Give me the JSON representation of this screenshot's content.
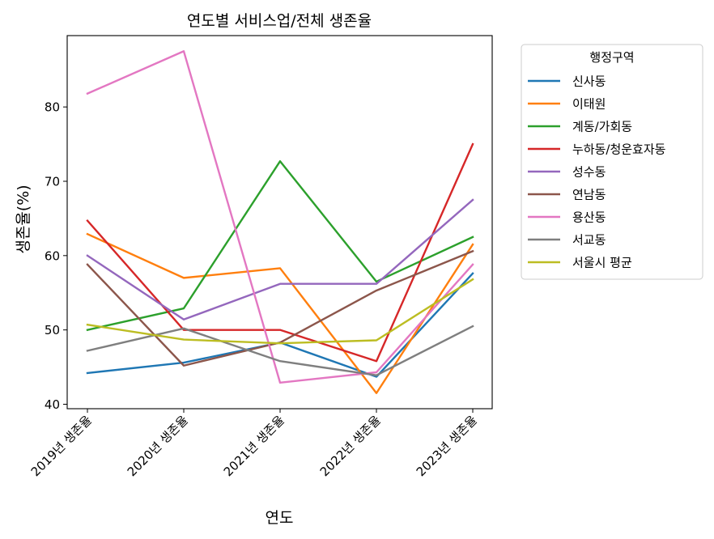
{
  "chart_data": {
    "type": "line",
    "title": "연도별 서비스업/전체 생존율",
    "xlabel": "연도",
    "ylabel": "생존율(%)",
    "categories": [
      "2019년 생존율",
      "2020년 생존율",
      "2021년 생존율",
      "2022년 생존율",
      "2023년 생존율"
    ],
    "ylim": [
      39.4,
      89.6
    ],
    "yticks": [
      40,
      50,
      60,
      70,
      80
    ],
    "grid": false,
    "legend": {
      "title": "행정구역",
      "placement": "outside-right"
    },
    "series": [
      {
        "name": "신사동",
        "color": "#1f77b4",
        "values": [
          44.2,
          45.6,
          48.3,
          43.7,
          57.6
        ]
      },
      {
        "name": "이태원",
        "color": "#ff7f0e",
        "values": [
          62.9,
          57.0,
          58.3,
          41.5,
          61.5
        ]
      },
      {
        "name": "계동/가회동",
        "color": "#2ca02c",
        "values": [
          50.0,
          52.9,
          72.7,
          56.5,
          62.5
        ]
      },
      {
        "name": "누하동/청운효자동",
        "color": "#d62728",
        "values": [
          64.7,
          50.0,
          50.0,
          45.8,
          75.0
        ]
      },
      {
        "name": "성수동",
        "color": "#9467bd",
        "values": [
          60.0,
          51.4,
          56.2,
          56.2,
          67.5
        ]
      },
      {
        "name": "연남동",
        "color": "#8c564b",
        "values": [
          58.8,
          45.2,
          48.3,
          55.3,
          60.6
        ]
      },
      {
        "name": "용산동",
        "color": "#e377c2",
        "values": [
          81.8,
          87.5,
          42.9,
          44.3,
          58.8
        ]
      },
      {
        "name": "서교동",
        "color": "#7f7f7f",
        "values": [
          47.2,
          50.2,
          45.8,
          43.9,
          50.5
        ]
      },
      {
        "name": "서울시 평균",
        "color": "#bcbd22",
        "values": [
          50.7,
          48.7,
          48.2,
          48.6,
          56.8
        ]
      }
    ]
  }
}
